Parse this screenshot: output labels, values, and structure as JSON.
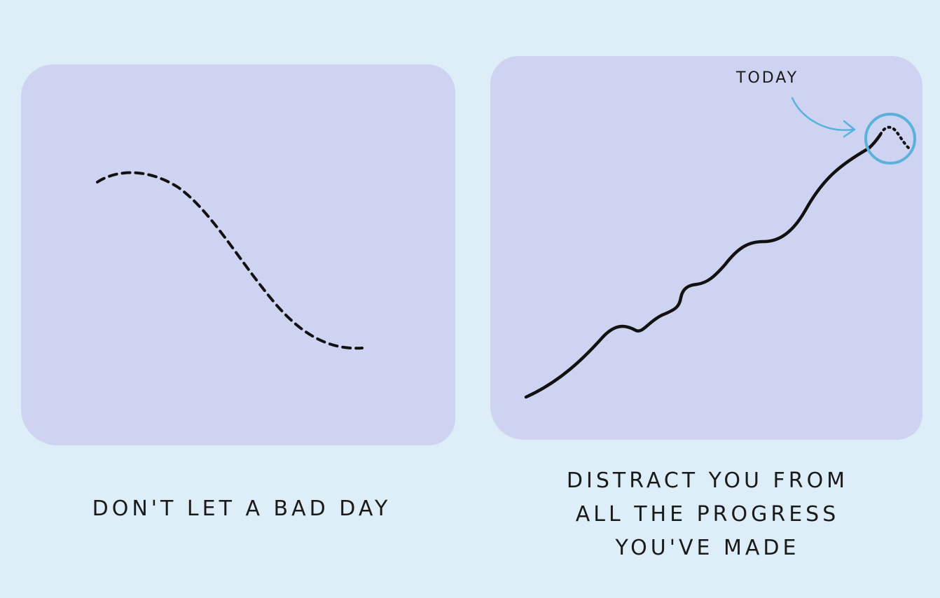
{
  "left_panel": {
    "caption": "DON'T LET A BAD DAY"
  },
  "right_panel": {
    "annotation": "TODAY",
    "caption_lines": [
      "DISTRACT YOU FROM",
      "ALL THE PROGRESS",
      "YOU'VE MADE"
    ]
  },
  "colors": {
    "background": "#ddeef9",
    "panel": "#cdd3f0",
    "line": "#111111",
    "highlight": "#5ab2dc"
  }
}
